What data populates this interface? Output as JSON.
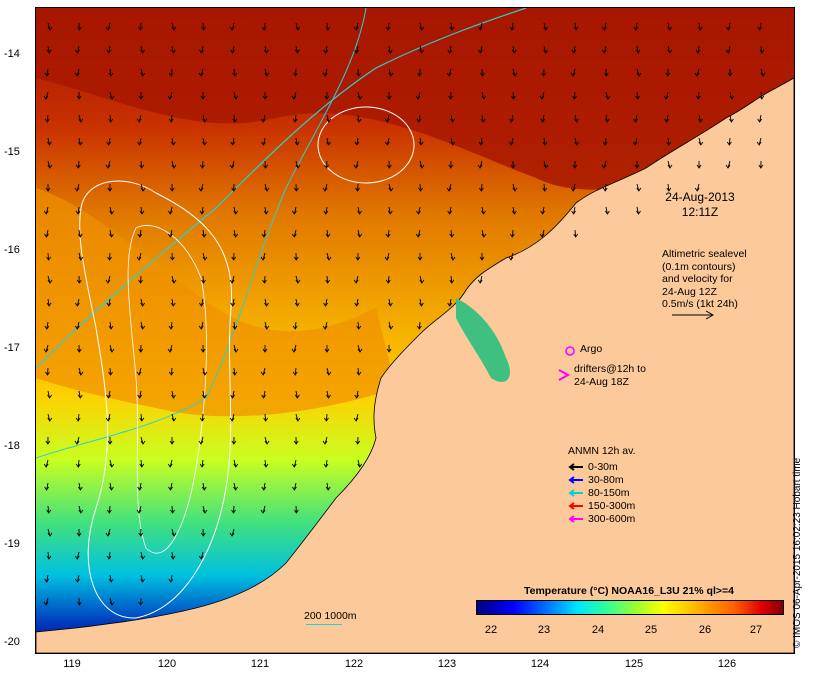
{
  "map": {
    "lat_ticks": [
      "-14",
      "-15",
      "-16",
      "-17",
      "-18",
      "-19",
      "-20"
    ],
    "lon_ticks": [
      "119",
      "120",
      "121",
      "122",
      "123",
      "124",
      "125",
      "126"
    ],
    "date_line1": "24-Aug-2013",
    "date_line2": "12:11Z",
    "altimetry_lines": [
      "Altimetric sealevel",
      "(0.1m contours)",
      "and velocity for",
      "24-Aug 12Z",
      "0.5m/s (1kt 24h)"
    ],
    "argo_label": "Argo",
    "drifter_lines": [
      "drifters@12h to",
      "24-Aug 18Z"
    ],
    "anmn_title": "ANMN 12h av.",
    "anmn_items": [
      {
        "label": "0-30m",
        "color": "#000000"
      },
      {
        "label": "30-80m",
        "color": "#0000ff"
      },
      {
        "label": "80-150m",
        "color": "#00d0d0"
      },
      {
        "label": "150-300m",
        "color": "#ff0000"
      },
      {
        "label": "300-600m",
        "color": "#ff00ff"
      }
    ],
    "scale_label": "200  1000m",
    "colorbar_title": "Temperature (°C) NOAA16_L3U 21% ql>=4",
    "colorbar_ticks": [
      "22",
      "23",
      "24",
      "25",
      "26",
      "27"
    ],
    "credit": "© IMOS 06-Apr-2015 16:02:23 Hobart time",
    "colors": {
      "land": "#fcc99a",
      "warm": "#b01a00",
      "mid": "#ffa500",
      "cool": "#60e060",
      "cold": "#0030c0",
      "isobath": "#2ccfcf",
      "contour": "#ffffff"
    }
  }
}
